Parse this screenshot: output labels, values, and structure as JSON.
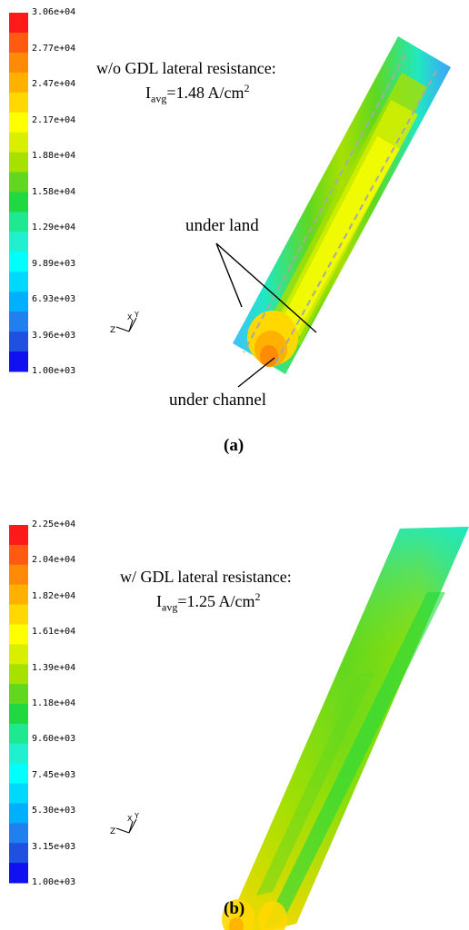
{
  "panel_a": {
    "colorbar": {
      "ticks": [
        "3.06e+04",
        "2.77e+04",
        "2.47e+04",
        "2.17e+04",
        "1.88e+04",
        "1.58e+04",
        "1.29e+04",
        "9.89e+03",
        "6.93e+03",
        "3.96e+03",
        "1.00e+03"
      ],
      "colors": [
        "#ff1a1a",
        "#ff5a10",
        "#ff8a08",
        "#ffb000",
        "#ffd800",
        "#ffff00",
        "#d8f000",
        "#a8e000",
        "#60d820",
        "#20d840",
        "#20e890",
        "#20f0d0",
        "#00ffff",
        "#00d8ff",
        "#00b0ff",
        "#2080f0",
        "#2050e0",
        "#1010f0"
      ]
    },
    "title_line1": "w/o GDL lateral resistance:",
    "i_prefix": "I",
    "i_sub": "avg",
    "i_value": "=1.48 A/cm",
    "i_sup": "2",
    "label_land": "under land",
    "label_channel": "under channel",
    "panel_label": "(a)",
    "axis_z": "Z",
    "axis_x": "X",
    "axis_y": "Y"
  },
  "panel_b": {
    "colorbar": {
      "ticks": [
        "2.25e+04",
        "2.04e+04",
        "1.82e+04",
        "1.61e+04",
        "1.39e+04",
        "1.18e+04",
        "9.60e+03",
        "7.45e+03",
        "5.30e+03",
        "3.15e+03",
        "1.00e+03"
      ],
      "colors": [
        "#ff1a1a",
        "#ff5a10",
        "#ff8a08",
        "#ffb000",
        "#ffd800",
        "#ffff00",
        "#d8f000",
        "#a8e000",
        "#60d820",
        "#20d840",
        "#20e890",
        "#20f0d0",
        "#00ffff",
        "#00d8ff",
        "#00b0ff",
        "#2080f0",
        "#2050e0",
        "#1010f0"
      ]
    },
    "title_line1": "w/ GDL lateral resistance:",
    "i_prefix": "I",
    "i_sub": "avg",
    "i_value": "=1.25 A/cm",
    "i_sup": "2",
    "panel_label": "(b)",
    "axis_z": "Z",
    "axis_x": "X",
    "axis_y": "Y"
  }
}
